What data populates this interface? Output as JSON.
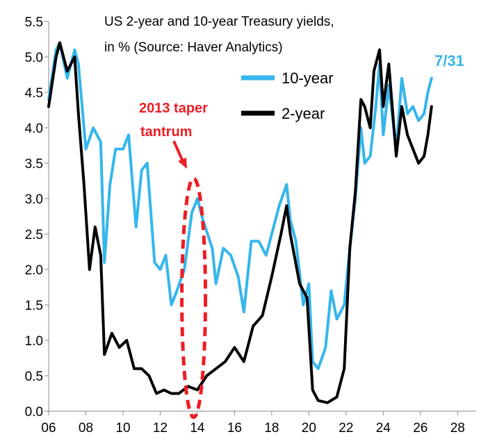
{
  "chart_data": {
    "type": "line",
    "title_line1": "US 2-year and 10-year Treasury yields,",
    "title_line2": "in % (Source: Haver Analytics)",
    "xlabel": "",
    "ylabel": "",
    "xlim": [
      2006,
      2029
    ],
    "ylim": [
      0.0,
      5.5
    ],
    "x_ticks": [
      2006,
      2008,
      2010,
      2012,
      2014,
      2016,
      2018,
      2020,
      2022,
      2024,
      2026,
      2028
    ],
    "x_tick_labels": [
      "06",
      "08",
      "10",
      "12",
      "14",
      "16",
      "18",
      "20",
      "22",
      "24",
      "26",
      "28"
    ],
    "y_ticks": [
      0.0,
      0.5,
      1.0,
      1.5,
      2.0,
      2.5,
      3.0,
      3.5,
      4.0,
      4.5,
      5.0,
      5.5
    ],
    "y_tick_labels": [
      "0.0",
      "0.5",
      "1.0",
      "1.5",
      "2.0",
      "2.5",
      "3.0",
      "3.5",
      "4.0",
      "4.5",
      "5.0",
      "5.5"
    ],
    "grid": false,
    "legend_position": "top-right",
    "series": [
      {
        "name": "10-year",
        "color": "#35b6ec",
        "points": [
          [
            2006.0,
            4.4
          ],
          [
            2006.4,
            5.1
          ],
          [
            2006.6,
            5.2
          ],
          [
            2007.0,
            4.7
          ],
          [
            2007.4,
            5.1
          ],
          [
            2007.6,
            4.9
          ],
          [
            2008.0,
            3.7
          ],
          [
            2008.4,
            4.0
          ],
          [
            2008.8,
            3.8
          ],
          [
            2009.0,
            2.1
          ],
          [
            2009.3,
            3.2
          ],
          [
            2009.6,
            3.7
          ],
          [
            2010.0,
            3.7
          ],
          [
            2010.3,
            3.9
          ],
          [
            2010.7,
            2.6
          ],
          [
            2011.0,
            3.4
          ],
          [
            2011.3,
            3.5
          ],
          [
            2011.7,
            2.1
          ],
          [
            2012.0,
            2.0
          ],
          [
            2012.3,
            2.2
          ],
          [
            2012.6,
            1.5
          ],
          [
            2012.9,
            1.7
          ],
          [
            2013.3,
            2.0
          ],
          [
            2013.7,
            2.8
          ],
          [
            2014.0,
            3.0
          ],
          [
            2014.3,
            2.7
          ],
          [
            2014.8,
            2.3
          ],
          [
            2015.0,
            1.8
          ],
          [
            2015.4,
            2.3
          ],
          [
            2015.8,
            2.2
          ],
          [
            2016.2,
            1.9
          ],
          [
            2016.5,
            1.4
          ],
          [
            2016.9,
            2.4
          ],
          [
            2017.3,
            2.4
          ],
          [
            2017.7,
            2.2
          ],
          [
            2018.0,
            2.5
          ],
          [
            2018.4,
            2.9
          ],
          [
            2018.8,
            3.2
          ],
          [
            2019.0,
            2.7
          ],
          [
            2019.3,
            2.4
          ],
          [
            2019.7,
            1.5
          ],
          [
            2020.0,
            1.8
          ],
          [
            2020.2,
            0.7
          ],
          [
            2020.5,
            0.6
          ],
          [
            2020.9,
            0.9
          ],
          [
            2021.2,
            1.7
          ],
          [
            2021.5,
            1.3
          ],
          [
            2021.9,
            1.5
          ],
          [
            2022.2,
            2.3
          ],
          [
            2022.5,
            3.0
          ],
          [
            2022.8,
            4.0
          ],
          [
            2023.0,
            3.5
          ],
          [
            2023.3,
            3.6
          ],
          [
            2023.6,
            4.3
          ],
          [
            2023.8,
            4.9
          ],
          [
            2024.0,
            3.9
          ],
          [
            2024.3,
            4.6
          ],
          [
            2024.7,
            3.7
          ],
          [
            2025.0,
            4.7
          ],
          [
            2025.3,
            4.2
          ],
          [
            2025.6,
            4.3
          ],
          [
            2025.9,
            4.1
          ],
          [
            2026.2,
            4.2
          ],
          [
            2026.4,
            4.5
          ],
          [
            2026.6,
            4.7
          ]
        ]
      },
      {
        "name": "2-year",
        "color": "#000000",
        "points": [
          [
            2006.0,
            4.3
          ],
          [
            2006.4,
            5.0
          ],
          [
            2006.6,
            5.2
          ],
          [
            2007.0,
            4.8
          ],
          [
            2007.4,
            5.0
          ],
          [
            2007.6,
            4.2
          ],
          [
            2007.9,
            3.2
          ],
          [
            2008.2,
            2.0
          ],
          [
            2008.5,
            2.6
          ],
          [
            2008.8,
            2.2
          ],
          [
            2009.0,
            0.8
          ],
          [
            2009.4,
            1.1
          ],
          [
            2009.8,
            0.9
          ],
          [
            2010.2,
            1.0
          ],
          [
            2010.6,
            0.6
          ],
          [
            2011.0,
            0.6
          ],
          [
            2011.4,
            0.5
          ],
          [
            2011.8,
            0.25
          ],
          [
            2012.2,
            0.3
          ],
          [
            2012.6,
            0.25
          ],
          [
            2013.0,
            0.25
          ],
          [
            2013.5,
            0.35
          ],
          [
            2014.0,
            0.3
          ],
          [
            2014.5,
            0.5
          ],
          [
            2015.0,
            0.6
          ],
          [
            2015.5,
            0.7
          ],
          [
            2016.0,
            0.9
          ],
          [
            2016.5,
            0.7
          ],
          [
            2017.0,
            1.2
          ],
          [
            2017.5,
            1.35
          ],
          [
            2018.0,
            1.9
          ],
          [
            2018.5,
            2.5
          ],
          [
            2018.8,
            2.9
          ],
          [
            2019.0,
            2.5
          ],
          [
            2019.5,
            1.8
          ],
          [
            2019.9,
            1.6
          ],
          [
            2020.2,
            0.3
          ],
          [
            2020.5,
            0.15
          ],
          [
            2021.0,
            0.12
          ],
          [
            2021.5,
            0.2
          ],
          [
            2021.9,
            0.6
          ],
          [
            2022.2,
            2.3
          ],
          [
            2022.5,
            3.1
          ],
          [
            2022.8,
            4.4
          ],
          [
            2023.0,
            4.3
          ],
          [
            2023.3,
            4.0
          ],
          [
            2023.5,
            4.8
          ],
          [
            2023.8,
            5.1
          ],
          [
            2024.0,
            4.3
          ],
          [
            2024.3,
            4.9
          ],
          [
            2024.7,
            3.6
          ],
          [
            2025.0,
            4.3
          ],
          [
            2025.3,
            3.9
          ],
          [
            2025.6,
            3.7
          ],
          [
            2025.9,
            3.5
          ],
          [
            2026.2,
            3.6
          ],
          [
            2026.4,
            3.9
          ],
          [
            2026.6,
            4.3
          ]
        ]
      }
    ]
  },
  "legend": {
    "items": [
      {
        "label": "10-year",
        "color": "#35b6ec"
      },
      {
        "label": "2-year",
        "color": "#000000"
      }
    ]
  },
  "annotation": {
    "text_line1": "2013 taper",
    "text_line2": "tantrum",
    "color": "#ee1c25",
    "center_x": 2013.8,
    "center_y": 1.6
  },
  "end_date_label": {
    "text": "7/31",
    "color": "#35b6ec"
  }
}
